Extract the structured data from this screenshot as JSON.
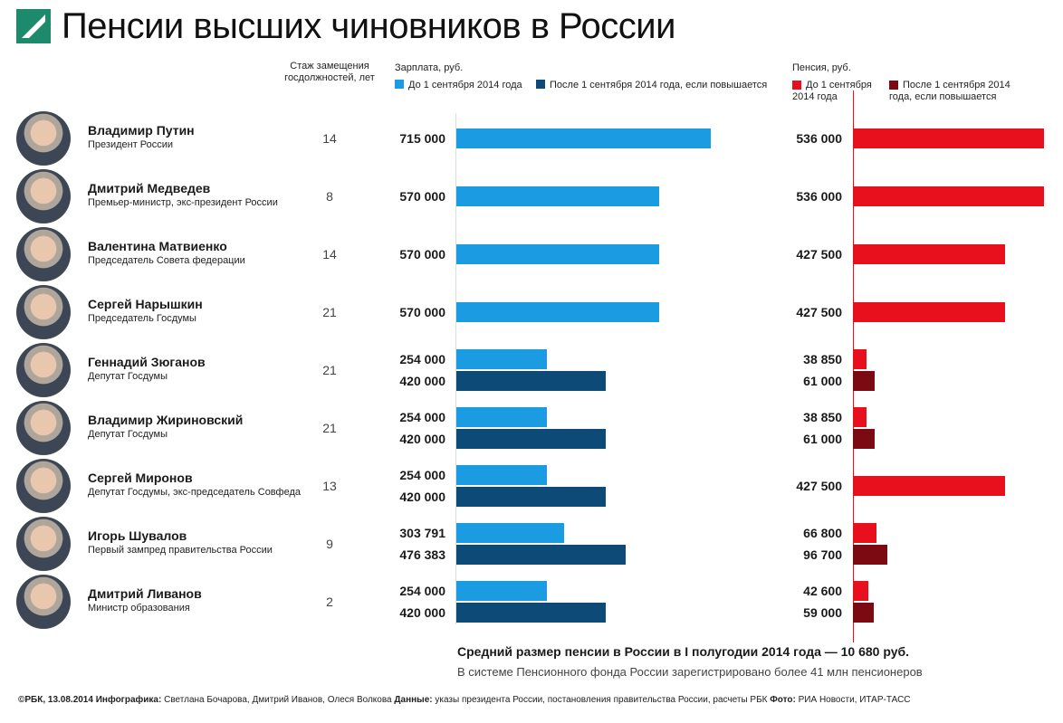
{
  "title": "Пенсии высших чиновников в России",
  "headers": {
    "tenure": "Стаж замещения госдолжностей, лет",
    "salary": "Зарплата, руб.",
    "salary_before": "До 1 сентября 2014 года",
    "salary_after": "После 1 сентября 2014 года, если повышается",
    "pension": "Пенсия, руб.",
    "pension_before": "До 1 сентября 2014 года",
    "pension_after": "После 1 сентября 2014 года, если повышается"
  },
  "colors": {
    "salary_before": "#1b9be2",
    "salary_after": "#0e4a78",
    "pension_before": "#e8101c",
    "pension_after": "#7b0a12",
    "brand": "#1d8a6b"
  },
  "chart_data": {
    "type": "bar",
    "title": "Пенсии высших чиновников в России",
    "series": [
      "salary_before",
      "salary_after",
      "pension_before",
      "pension_after"
    ],
    "people": [
      {
        "name": "Владимир Путин",
        "role": "Президент России",
        "tenure": 14,
        "salary": [
          715000
        ],
        "pension": [
          536000
        ]
      },
      {
        "name": "Дмитрий Медведев",
        "role": "Премьер-министр, экс-президент России",
        "tenure": 8,
        "salary": [
          570000
        ],
        "pension": [
          536000
        ]
      },
      {
        "name": "Валентина Матвиенко",
        "role": "Председатель Совета федерации",
        "tenure": 14,
        "salary": [
          570000
        ],
        "pension": [
          427500
        ]
      },
      {
        "name": "Сергей Нарышкин",
        "role": "Председатель Госдумы",
        "tenure": 21,
        "salary": [
          570000
        ],
        "pension": [
          427500
        ]
      },
      {
        "name": "Геннадий Зюганов",
        "role": "Депутат Госдумы",
        "tenure": 21,
        "salary": [
          254000,
          420000
        ],
        "pension": [
          38850,
          61000
        ]
      },
      {
        "name": "Владимир Жириновский",
        "role": "Депутат Госдумы",
        "tenure": 21,
        "salary": [
          254000,
          420000
        ],
        "pension": [
          38850,
          61000
        ]
      },
      {
        "name": "Сергей Миронов",
        "role": "Депутат Госдумы, экс-председатель Совфеда",
        "tenure": 13,
        "salary": [
          254000,
          420000
        ],
        "pension": [
          427500
        ]
      },
      {
        "name": "Игорь Шувалов",
        "role": "Первый зампред правительства России",
        "tenure": 9,
        "salary": [
          303791,
          476383
        ],
        "pension": [
          66800,
          96700
        ]
      },
      {
        "name": "Дмитрий Ливанов",
        "role": "Министр образования",
        "tenure": 2,
        "salary": [
          254000,
          420000
        ],
        "pension": [
          42600,
          59000
        ]
      }
    ]
  },
  "footer": {
    "average": "Средний размер пенсии в России в I полугодии 2014 года — 10 680 руб.",
    "registered": "В системе Пенсионного фонда России зарегистрировано более 41 млн пенсионеров",
    "copyright": "©РБК, 13.08.2014",
    "infographic_label": "Инфографика:",
    "infographic": "Светлана Бочарова, Дмитрий Иванов, Олеся Волкова",
    "data_label": "Данные:",
    "data": "указы президента России, постановления правительства России, расчеты РБК",
    "photo_label": "Фото:",
    "photo": "РИА Новости, ИТАР-ТАСС"
  }
}
